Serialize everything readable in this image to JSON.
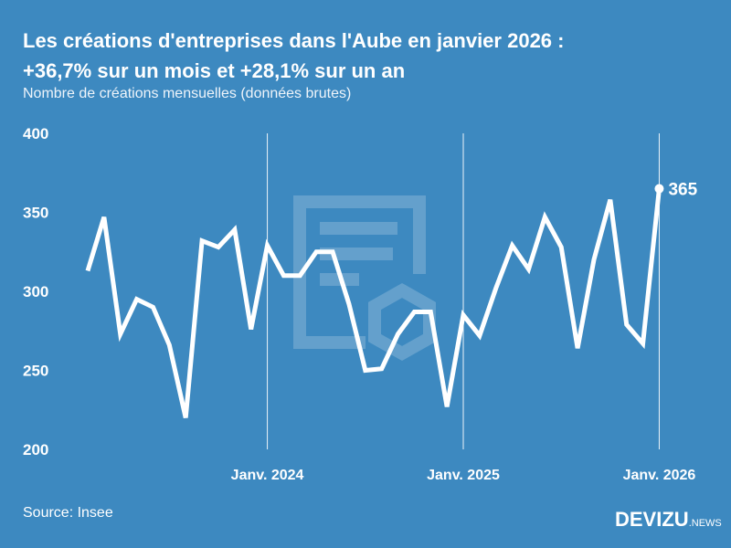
{
  "header": {
    "title_line1": "Les créations d'entreprises dans l'Aube en janvier 2026 :",
    "title_line2": "+36,7% sur un mois et +28,1% sur un an",
    "subtitle": "Nombre de créations mensuelles (données brutes)"
  },
  "footer": {
    "source": "Source: Insee",
    "logo_main": "DEVIZU",
    "logo_suffix": ".NEWS"
  },
  "colors": {
    "background": "#3d89c0",
    "line": "#ffffff"
  },
  "chart_data": {
    "type": "line",
    "title": "Les créations d'entreprises dans l'Aube en janvier 2026 : +36,7% sur un mois et +28,1% sur un an",
    "subtitle": "Nombre de créations mensuelles (données brutes)",
    "x": [
      "2023-02",
      "2023-03",
      "2023-04",
      "2023-05",
      "2023-06",
      "2023-07",
      "2023-08",
      "2023-09",
      "2023-10",
      "2023-11",
      "2023-12",
      "2024-01",
      "2024-02",
      "2024-03",
      "2024-04",
      "2024-05",
      "2024-06",
      "2024-07",
      "2024-08",
      "2024-09",
      "2024-10",
      "2024-11",
      "2024-12",
      "2025-01",
      "2025-02",
      "2025-03",
      "2025-04",
      "2025-05",
      "2025-06",
      "2025-07",
      "2025-08",
      "2025-09",
      "2025-10",
      "2025-11",
      "2025-12",
      "2026-01"
    ],
    "values": [
      313,
      347,
      273,
      295,
      290,
      266,
      220,
      332,
      328,
      339,
      276,
      329,
      310,
      310,
      325,
      325,
      292,
      250,
      251,
      273,
      287,
      287,
      227,
      285,
      272,
      302,
      329,
      314,
      347,
      328,
      264,
      320,
      358,
      279,
      267,
      365
    ],
    "ylim": [
      200,
      400
    ],
    "yticks": [
      200,
      250,
      300,
      350,
      400
    ],
    "xticks": [
      {
        "x": "2024-01",
        "label": "Janv. 2024"
      },
      {
        "x": "2025-01",
        "label": "Janv. 2025"
      },
      {
        "x": "2026-01",
        "label": "Janv. 2026"
      }
    ],
    "annotation": {
      "x": "2026-01",
      "label": "365"
    },
    "grid": "vertical lines at January",
    "legend": "none"
  }
}
